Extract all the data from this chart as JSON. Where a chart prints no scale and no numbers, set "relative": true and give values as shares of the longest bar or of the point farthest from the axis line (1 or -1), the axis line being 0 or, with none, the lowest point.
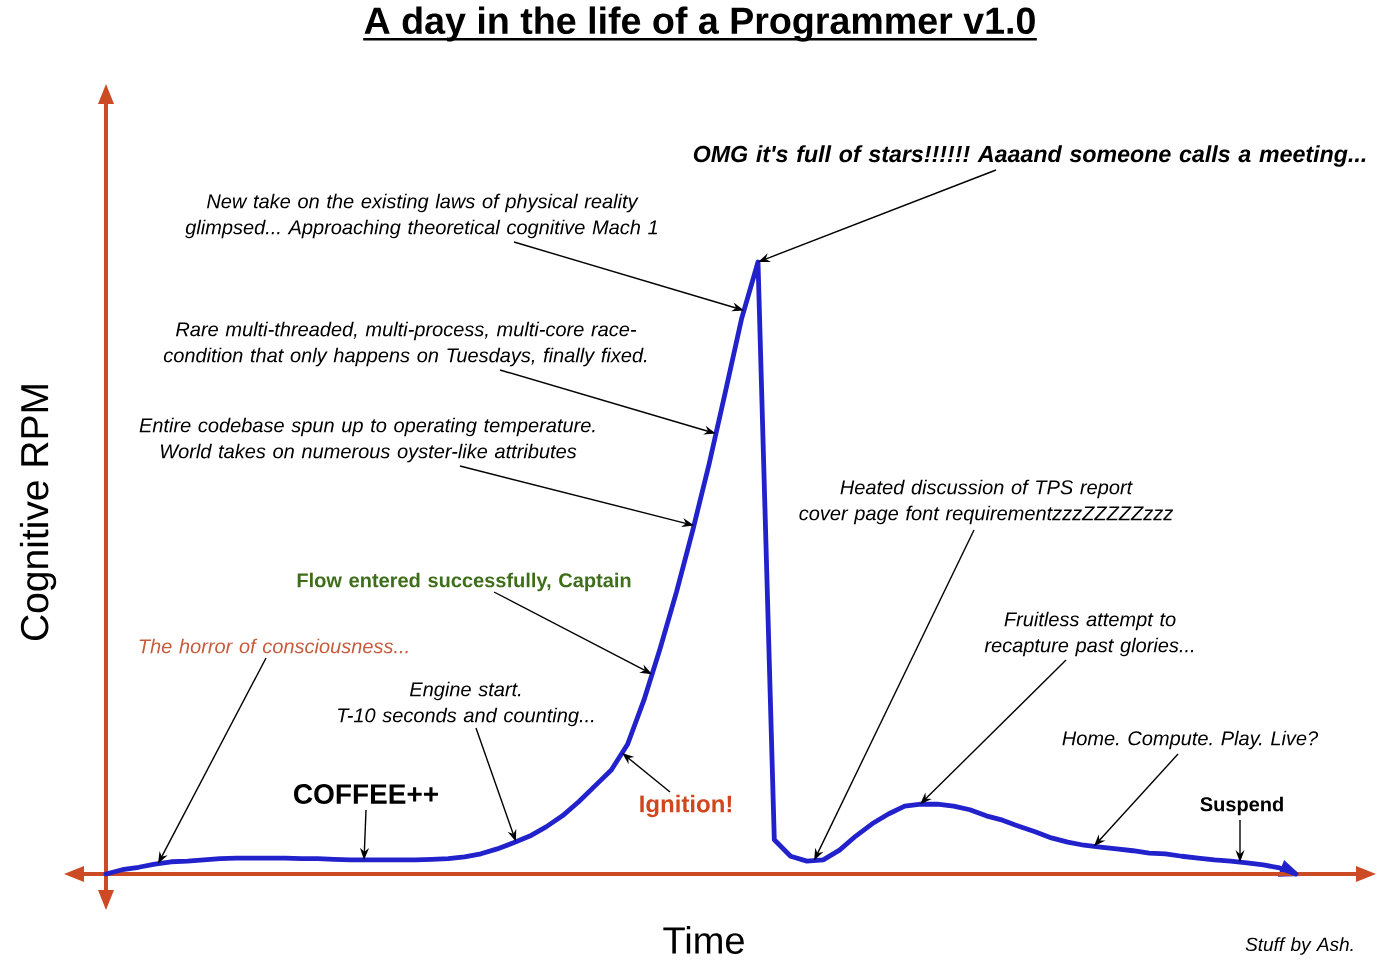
{
  "chart_data": {
    "type": "line",
    "title": "A day in the life of a Programmer v1.0",
    "xlabel": "Time",
    "ylabel": "Cognitive RPM",
    "relative": true,
    "color": "#2222cc",
    "categories": [
      null,
      null,
      null,
      null,
      null,
      null,
      null,
      null,
      null,
      null,
      null,
      null,
      null,
      null,
      null,
      null,
      null,
      null,
      null,
      null,
      null,
      null,
      null,
      null,
      null,
      null,
      null,
      null,
      null,
      null,
      null,
      null,
      null,
      null,
      null,
      null,
      null,
      null,
      null,
      null,
      null,
      null,
      null,
      null,
      null,
      null,
      null,
      null,
      null,
      null,
      null,
      null,
      null,
      null,
      null,
      null,
      null,
      null,
      null,
      null,
      null,
      null,
      null,
      null,
      null,
      null,
      null,
      null,
      null,
      null,
      null,
      null,
      null,
      null
    ],
    "values": [
      0,
      0.007,
      0.011,
      0.016,
      0.02,
      0.021,
      0.023,
      0.025,
      0.026,
      0.026,
      0.026,
      0.026,
      0.025,
      0.025,
      0.024,
      0.023,
      0.023,
      0.023,
      0.023,
      0.023,
      0.024,
      0.025,
      0.028,
      0.033,
      0.041,
      0.051,
      0.062,
      0.077,
      0.095,
      0.118,
      0.144,
      0.17,
      0.212,
      0.284,
      0.369,
      0.461,
      0.562,
      0.67,
      0.788,
      0.908,
      1,
      0.056,
      0.029,
      0.021,
      0.023,
      0.039,
      0.062,
      0.082,
      0.098,
      0.111,
      0.114,
      0.114,
      0.111,
      0.105,
      0.095,
      0.088,
      0.078,
      0.069,
      0.059,
      0.052,
      0.047,
      0.044,
      0.041,
      0.038,
      0.034,
      0.033,
      0.029,
      0.026,
      0.023,
      0.021,
      0.018,
      0.015,
      0.01,
      0
    ],
    "annotations": [
      "OMG it's full of stars!!!!!! Aaaand someone calls a meeting...",
      "New take on the existing laws of physical reality\nglimpsed... Approaching theoretical cognitive Mach 1",
      "Rare multi-threaded, multi-process, multi-core race-\ncondition that only happens on Tuesdays, finally fixed.",
      "Entire codebase spun up to operating temperature.\nWorld takes on numerous oyster-like attributes",
      "Flow entered successfully, Captain",
      "The horror of consciousness...",
      "Engine start.\nT-10 seconds and counting...",
      "COFFEE++",
      "Ignition!",
      "Heated discussion of TPS report\ncover page font requirementzzzZZZZZzzz",
      "Fruitless attempt to\nrecapture past glories...",
      "Home. Compute. Play. Live?",
      "Suspend",
      "Stuff by Ash."
    ]
  }
}
